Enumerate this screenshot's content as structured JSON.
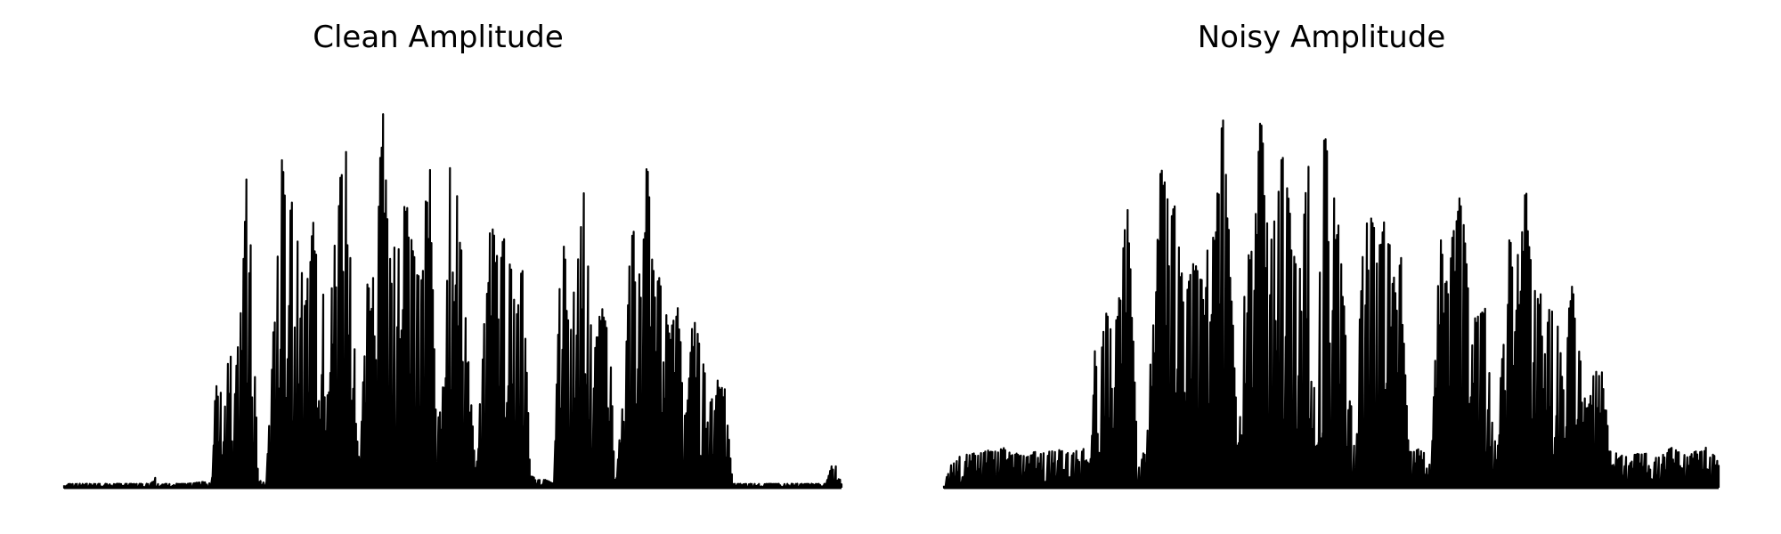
{
  "chart_data": [
    {
      "type": "area",
      "title": "Clean Amplitude",
      "axes": "off",
      "grid": false,
      "color": "#000000",
      "ylim": [
        0,
        1
      ],
      "envelope": {
        "x": [
          0,
          0.02,
          0.05,
          0.08,
          0.1,
          0.11,
          0.115,
          0.12,
          0.14,
          0.16,
          0.18,
          0.19,
          0.195,
          0.2,
          0.21,
          0.22,
          0.23,
          0.235,
          0.24,
          0.25,
          0.26,
          0.28,
          0.3,
          0.31,
          0.32,
          0.33,
          0.35,
          0.36,
          0.37,
          0.38,
          0.39,
          0.4,
          0.41,
          0.42,
          0.44,
          0.45,
          0.46,
          0.47,
          0.48,
          0.49,
          0.5,
          0.51,
          0.52,
          0.53,
          0.54,
          0.55,
          0.56,
          0.57,
          0.58,
          0.59,
          0.6,
          0.61,
          0.62,
          0.63,
          0.64,
          0.65,
          0.66,
          0.67,
          0.68,
          0.69,
          0.7,
          0.71,
          0.72,
          0.73,
          0.74,
          0.75,
          0.76,
          0.77,
          0.78,
          0.79,
          0.8,
          0.81,
          0.82,
          0.83,
          0.84,
          0.85,
          0.86,
          0.88,
          0.9,
          0.92,
          0.94,
          0.96,
          0.98,
          0.99,
          1.0
        ],
        "y": [
          0.01,
          0.01,
          0.01,
          0.01,
          0.01,
          0.01,
          0.04,
          0.01,
          0.01,
          0.01,
          0.015,
          0.01,
          0.28,
          0.22,
          0.4,
          0.3,
          0.52,
          0.85,
          0.6,
          0.02,
          0.01,
          0.83,
          0.68,
          0.44,
          0.7,
          0.45,
          0.64,
          0.97,
          0.55,
          0.05,
          0.52,
          0.55,
          0.98,
          0.55,
          0.74,
          0.58,
          0.55,
          0.86,
          0.04,
          0.94,
          0.82,
          0.65,
          0.32,
          0.03,
          0.4,
          0.72,
          0.6,
          0.7,
          0.44,
          0.58,
          0.03,
          0.02,
          0.02,
          0.01,
          0.72,
          0.4,
          0.57,
          0.8,
          0.3,
          0.46,
          0.44,
          0.02,
          0.25,
          0.68,
          0.55,
          0.82,
          0.52,
          0.55,
          0.39,
          0.47,
          0.18,
          0.46,
          0.34,
          0.22,
          0.28,
          0.25,
          0.01,
          0.01,
          0.01,
          0.01,
          0.01,
          0.01,
          0.01,
          0.07,
          0.01
        ]
      }
    },
    {
      "type": "area",
      "title": "Noisy Amplitude",
      "axes": "off",
      "grid": false,
      "color": "#000000",
      "ylim": [
        0,
        1
      ],
      "envelope": {
        "x": [
          0,
          0.01,
          0.02,
          0.05,
          0.08,
          0.1,
          0.12,
          0.14,
          0.16,
          0.18,
          0.19,
          0.195,
          0.2,
          0.21,
          0.22,
          0.23,
          0.235,
          0.24,
          0.25,
          0.26,
          0.28,
          0.3,
          0.31,
          0.32,
          0.33,
          0.35,
          0.36,
          0.37,
          0.38,
          0.39,
          0.4,
          0.41,
          0.42,
          0.44,
          0.45,
          0.46,
          0.47,
          0.48,
          0.49,
          0.5,
          0.51,
          0.52,
          0.53,
          0.54,
          0.55,
          0.56,
          0.57,
          0.58,
          0.59,
          0.6,
          0.61,
          0.62,
          0.63,
          0.64,
          0.65,
          0.66,
          0.67,
          0.68,
          0.69,
          0.7,
          0.71,
          0.72,
          0.73,
          0.74,
          0.75,
          0.76,
          0.77,
          0.78,
          0.79,
          0.8,
          0.81,
          0.82,
          0.83,
          0.84,
          0.85,
          0.86,
          0.88,
          0.9,
          0.92,
          0.94,
          0.96,
          0.98,
          0.99,
          1.0
        ],
        "y": [
          0.01,
          0.06,
          0.08,
          0.09,
          0.1,
          0.08,
          0.09,
          0.1,
          0.09,
          0.1,
          0.08,
          0.35,
          0.3,
          0.45,
          0.38,
          0.53,
          0.83,
          0.6,
          0.08,
          0.09,
          0.83,
          0.7,
          0.5,
          0.6,
          0.55,
          0.64,
          0.96,
          0.55,
          0.09,
          0.6,
          0.65,
          0.99,
          0.58,
          0.88,
          0.6,
          0.55,
          0.9,
          0.09,
          0.94,
          0.8,
          0.65,
          0.36,
          0.09,
          0.6,
          0.72,
          0.6,
          0.7,
          0.52,
          0.58,
          0.09,
          0.1,
          0.09,
          0.1,
          0.65,
          0.5,
          0.73,
          0.72,
          0.4,
          0.45,
          0.46,
          0.09,
          0.3,
          0.68,
          0.59,
          0.8,
          0.52,
          0.5,
          0.45,
          0.5,
          0.25,
          0.53,
          0.35,
          0.2,
          0.3,
          0.29,
          0.09,
          0.08,
          0.09,
          0.08,
          0.1,
          0.08,
          0.1,
          0.1,
          0.06
        ]
      }
    }
  ]
}
